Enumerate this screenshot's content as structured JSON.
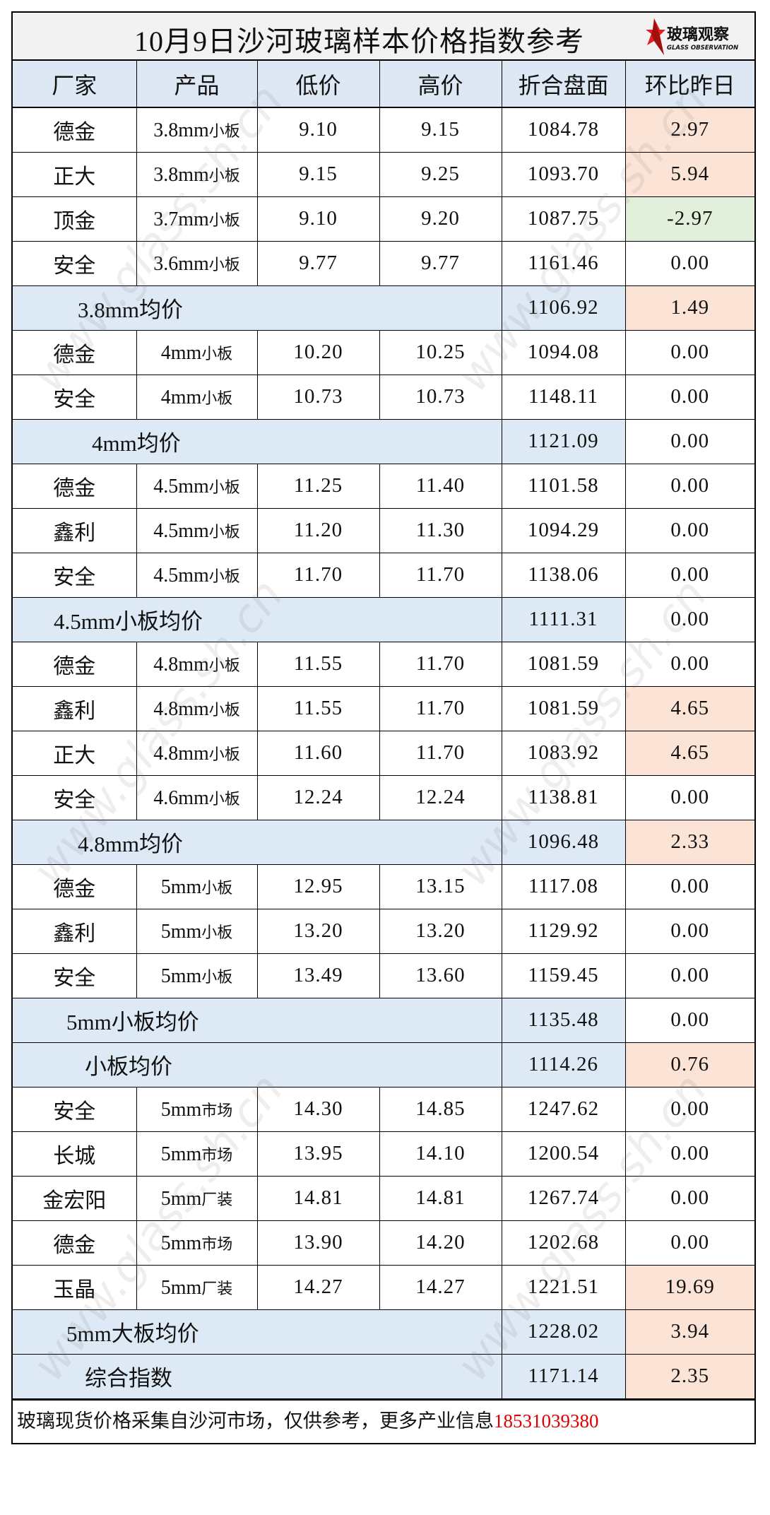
{
  "title": "10月9日沙河玻璃样本价格指数参考",
  "logo": {
    "cn": "玻璃观察",
    "en": "GLASS OBSERVATION",
    "color": "#e02020"
  },
  "watermark": "www.glass.sh.cn",
  "columns": [
    "厂家",
    "产品",
    "低价",
    "高价",
    "折合盘面",
    "环比昨日"
  ],
  "colors": {
    "header_bg": "#dde8f4",
    "average_bg": "#dde9f5",
    "increase_bg": "#fbe3d6",
    "decrease_bg": "#e2efda",
    "phone": "#e00000"
  },
  "rows": [
    {
      "type": "item",
      "maker": "德金",
      "size": "3.8mm",
      "kind": "小板",
      "low": "9.10",
      "high": "9.15",
      "index": "1084.78",
      "change": "2.97"
    },
    {
      "type": "item",
      "maker": "正大",
      "size": "3.8mm",
      "kind": "小板",
      "low": "9.15",
      "high": "9.25",
      "index": "1093.70",
      "change": "5.94"
    },
    {
      "type": "item",
      "maker": "顶金",
      "size": "3.7mm",
      "kind": "小板",
      "low": "9.10",
      "high": "9.20",
      "index": "1087.75",
      "change": "-2.97"
    },
    {
      "type": "item",
      "maker": "安全",
      "size": "3.6mm",
      "kind": "小板",
      "low": "9.77",
      "high": "9.77",
      "index": "1161.46",
      "change": "0.00"
    },
    {
      "type": "avg",
      "label": "3.8mm均价",
      "index": "1106.92",
      "change": "1.49"
    },
    {
      "type": "item",
      "maker": "德金",
      "size": "4mm",
      "kind": "小板",
      "low": "10.20",
      "high": "10.25",
      "index": "1094.08",
      "change": "0.00"
    },
    {
      "type": "item",
      "maker": "安全",
      "size": "4mm",
      "kind": "小板",
      "low": "10.73",
      "high": "10.73",
      "index": "1148.11",
      "change": "0.00"
    },
    {
      "type": "avg",
      "label": "4mm均价",
      "index": "1121.09",
      "change": "0.00"
    },
    {
      "type": "item",
      "maker": "德金",
      "size": "4.5mm",
      "kind": "小板",
      "low": "11.25",
      "high": "11.40",
      "index": "1101.58",
      "change": "0.00"
    },
    {
      "type": "item",
      "maker": "鑫利",
      "size": "4.5mm",
      "kind": "小板",
      "low": "11.20",
      "high": "11.30",
      "index": "1094.29",
      "change": "0.00"
    },
    {
      "type": "item",
      "maker": "安全",
      "size": "4.5mm",
      "kind": "小板",
      "low": "11.70",
      "high": "11.70",
      "index": "1138.06",
      "change": "0.00"
    },
    {
      "type": "avg",
      "label": "4.5mm小板均价",
      "index": "1111.31",
      "change": "0.00"
    },
    {
      "type": "item",
      "maker": "德金",
      "size": "4.8mm",
      "kind": "小板",
      "low": "11.55",
      "high": "11.70",
      "index": "1081.59",
      "change": "0.00"
    },
    {
      "type": "item",
      "maker": "鑫利",
      "size": "4.8mm",
      "kind": "小板",
      "low": "11.55",
      "high": "11.70",
      "index": "1081.59",
      "change": "4.65"
    },
    {
      "type": "item",
      "maker": "正大",
      "size": "4.8mm",
      "kind": "小板",
      "low": "11.60",
      "high": "11.70",
      "index": "1083.92",
      "change": "4.65"
    },
    {
      "type": "item",
      "maker": "安全",
      "size": "4.6mm",
      "kind": "小板",
      "low": "12.24",
      "high": "12.24",
      "index": "1138.81",
      "change": "0.00"
    },
    {
      "type": "avg",
      "label": "4.8mm均价",
      "index": "1096.48",
      "change": "2.33"
    },
    {
      "type": "item",
      "maker": "德金",
      "size": "5mm",
      "kind": "小板",
      "low": "12.95",
      "high": "13.15",
      "index": "1117.08",
      "change": "0.00"
    },
    {
      "type": "item",
      "maker": "鑫利",
      "size": "5mm",
      "kind": "小板",
      "low": "13.20",
      "high": "13.20",
      "index": "1129.92",
      "change": "0.00"
    },
    {
      "type": "item",
      "maker": "安全",
      "size": "5mm",
      "kind": "小板",
      "low": "13.49",
      "high": "13.60",
      "index": "1159.45",
      "change": "0.00"
    },
    {
      "type": "avg",
      "label": "5mm小板均价",
      "index": "1135.48",
      "change": "0.00"
    },
    {
      "type": "avg",
      "label": "小板均价",
      "index": "1114.26",
      "change": "0.76"
    },
    {
      "type": "item",
      "maker": "安全",
      "size": "5mm",
      "kind": "市场",
      "low": "14.30",
      "high": "14.85",
      "index": "1247.62",
      "change": "0.00"
    },
    {
      "type": "item",
      "maker": "长城",
      "size": "5mm",
      "kind": "市场",
      "low": "13.95",
      "high": "14.10",
      "index": "1200.54",
      "change": "0.00"
    },
    {
      "type": "item",
      "maker": "金宏阳",
      "size": "5mm",
      "kind": "厂装",
      "low": "14.81",
      "high": "14.81",
      "index": "1267.74",
      "change": "0.00"
    },
    {
      "type": "item",
      "maker": "德金",
      "size": "5mm",
      "kind": "市场",
      "low": "13.90",
      "high": "14.20",
      "index": "1202.68",
      "change": "0.00"
    },
    {
      "type": "item",
      "maker": "玉晶",
      "size": "5mm",
      "kind": "厂装",
      "low": "14.27",
      "high": "14.27",
      "index": "1221.51",
      "change": "19.69"
    },
    {
      "type": "avg",
      "label": "5mm大板均价",
      "index": "1228.02",
      "change": "3.94"
    },
    {
      "type": "avg",
      "label": "综合指数",
      "index": "1171.14",
      "change": "2.35"
    }
  ],
  "footer": {
    "text": "玻璃现货价格采集自沙河市场，仅供参考，更多产业信息",
    "phone": "18531039380"
  }
}
